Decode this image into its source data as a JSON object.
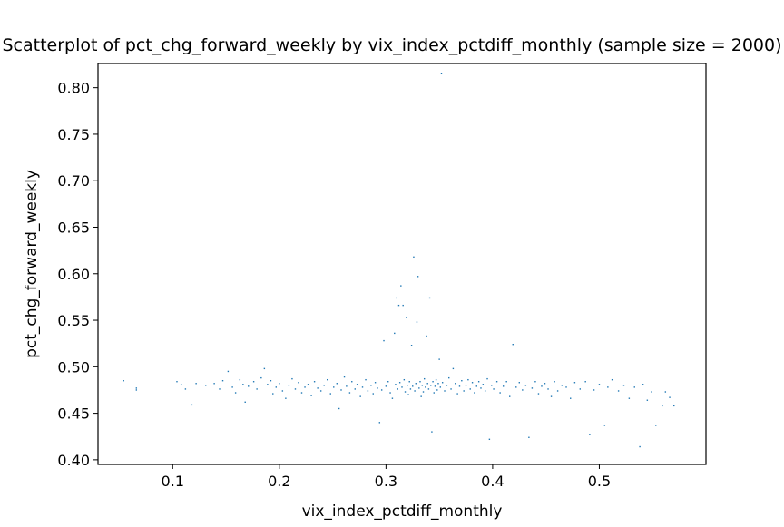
{
  "chart_data": {
    "type": "scatter",
    "title": "Scatterplot of pct_chg_forward_weekly by vix_index_pctdiff_monthly (sample size = 2000)",
    "xlabel": "vix_index_pctdiff_monthly",
    "ylabel": "pct_chg_forward_weekly",
    "xlim": [
      0.03,
      0.6
    ],
    "ylim": [
      0.395,
      0.826
    ],
    "xticks": [
      0.1,
      0.2,
      0.3,
      0.4,
      0.5
    ],
    "xtick_labels": [
      "0.1",
      "0.2",
      "0.3",
      "0.4",
      "0.5"
    ],
    "yticks": [
      0.4,
      0.45,
      0.5,
      0.55,
      0.6,
      0.65,
      0.7,
      0.75,
      0.8
    ],
    "ytick_labels": [
      "0.40",
      "0.45",
      "0.50",
      "0.55",
      "0.60",
      "0.65",
      "0.70",
      "0.75",
      "0.80"
    ],
    "grid": false,
    "marker_color": "#1f77b4",
    "points": [
      [
        0.054,
        0.485
      ],
      [
        0.066,
        0.477
      ],
      [
        0.066,
        0.475
      ],
      [
        0.104,
        0.484
      ],
      [
        0.108,
        0.481
      ],
      [
        0.112,
        0.476
      ],
      [
        0.118,
        0.459
      ],
      [
        0.122,
        0.482
      ],
      [
        0.131,
        0.48
      ],
      [
        0.139,
        0.482
      ],
      [
        0.144,
        0.476
      ],
      [
        0.147,
        0.485
      ],
      [
        0.152,
        0.495
      ],
      [
        0.156,
        0.478
      ],
      [
        0.159,
        0.472
      ],
      [
        0.163,
        0.486
      ],
      [
        0.166,
        0.481
      ],
      [
        0.168,
        0.462
      ],
      [
        0.171,
        0.479
      ],
      [
        0.176,
        0.484
      ],
      [
        0.179,
        0.476
      ],
      [
        0.183,
        0.488
      ],
      [
        0.186,
        0.498
      ],
      [
        0.189,
        0.481
      ],
      [
        0.192,
        0.485
      ],
      [
        0.194,
        0.471
      ],
      [
        0.197,
        0.478
      ],
      [
        0.2,
        0.482
      ],
      [
        0.203,
        0.474
      ],
      [
        0.206,
        0.466
      ],
      [
        0.209,
        0.48
      ],
      [
        0.212,
        0.487
      ],
      [
        0.215,
        0.476
      ],
      [
        0.218,
        0.483
      ],
      [
        0.221,
        0.472
      ],
      [
        0.224,
        0.478
      ],
      [
        0.227,
        0.481
      ],
      [
        0.23,
        0.469
      ],
      [
        0.233,
        0.484
      ],
      [
        0.236,
        0.477
      ],
      [
        0.239,
        0.474
      ],
      [
        0.242,
        0.48
      ],
      [
        0.245,
        0.486
      ],
      [
        0.248,
        0.471
      ],
      [
        0.251,
        0.478
      ],
      [
        0.254,
        0.482
      ],
      [
        0.256,
        0.455
      ],
      [
        0.258,
        0.475
      ],
      [
        0.261,
        0.489
      ],
      [
        0.263,
        0.479
      ],
      [
        0.266,
        0.472
      ],
      [
        0.268,
        0.484
      ],
      [
        0.271,
        0.476
      ],
      [
        0.273,
        0.481
      ],
      [
        0.276,
        0.468
      ],
      [
        0.278,
        0.478
      ],
      [
        0.281,
        0.486
      ],
      [
        0.283,
        0.474
      ],
      [
        0.286,
        0.48
      ],
      [
        0.288,
        0.471
      ],
      [
        0.29,
        0.483
      ],
      [
        0.292,
        0.477
      ],
      [
        0.294,
        0.44
      ],
      [
        0.296,
        0.475
      ],
      [
        0.298,
        0.528
      ],
      [
        0.3,
        0.479
      ],
      [
        0.302,
        0.484
      ],
      [
        0.304,
        0.472
      ],
      [
        0.306,
        0.466
      ],
      [
        0.308,
        0.536
      ],
      [
        0.309,
        0.481
      ],
      [
        0.31,
        0.574
      ],
      [
        0.311,
        0.476
      ],
      [
        0.312,
        0.566
      ],
      [
        0.313,
        0.483
      ],
      [
        0.314,
        0.587
      ],
      [
        0.315,
        0.478
      ],
      [
        0.316,
        0.566
      ],
      [
        0.317,
        0.486
      ],
      [
        0.318,
        0.473
      ],
      [
        0.319,
        0.553
      ],
      [
        0.32,
        0.48
      ],
      [
        0.321,
        0.47
      ],
      [
        0.322,
        0.484
      ],
      [
        0.323,
        0.476
      ],
      [
        0.324,
        0.523
      ],
      [
        0.325,
        0.479
      ],
      [
        0.326,
        0.618
      ],
      [
        0.327,
        0.474
      ],
      [
        0.328,
        0.482
      ],
      [
        0.329,
        0.548
      ],
      [
        0.33,
        0.597
      ],
      [
        0.331,
        0.477
      ],
      [
        0.332,
        0.484
      ],
      [
        0.333,
        0.468
      ],
      [
        0.334,
        0.48
      ],
      [
        0.335,
        0.473
      ],
      [
        0.336,
        0.487
      ],
      [
        0.337,
        0.478
      ],
      [
        0.338,
        0.533
      ],
      [
        0.339,
        0.482
      ],
      [
        0.34,
        0.476
      ],
      [
        0.341,
        0.574
      ],
      [
        0.342,
        0.48
      ],
      [
        0.343,
        0.43
      ],
      [
        0.344,
        0.484
      ],
      [
        0.345,
        0.472
      ],
      [
        0.346,
        0.479
      ],
      [
        0.347,
        0.486
      ],
      [
        0.348,
        0.475
      ],
      [
        0.349,
        0.482
      ],
      [
        0.35,
        0.508
      ],
      [
        0.351,
        0.478
      ],
      [
        0.352,
        0.815
      ],
      [
        0.353,
        0.483
      ],
      [
        0.355,
        0.474
      ],
      [
        0.357,
        0.48
      ],
      [
        0.359,
        0.488
      ],
      [
        0.361,
        0.476
      ],
      [
        0.363,
        0.498
      ],
      [
        0.365,
        0.482
      ],
      [
        0.367,
        0.471
      ],
      [
        0.369,
        0.479
      ],
      [
        0.371,
        0.485
      ],
      [
        0.373,
        0.474
      ],
      [
        0.375,
        0.48
      ],
      [
        0.377,
        0.486
      ],
      [
        0.379,
        0.476
      ],
      [
        0.381,
        0.483
      ],
      [
        0.383,
        0.472
      ],
      [
        0.385,
        0.479
      ],
      [
        0.387,
        0.484
      ],
      [
        0.389,
        0.477
      ],
      [
        0.391,
        0.481
      ],
      [
        0.393,
        0.474
      ],
      [
        0.395,
        0.487
      ],
      [
        0.397,
        0.422
      ],
      [
        0.399,
        0.48
      ],
      [
        0.401,
        0.476
      ],
      [
        0.404,
        0.484
      ],
      [
        0.407,
        0.472
      ],
      [
        0.41,
        0.479
      ],
      [
        0.413,
        0.484
      ],
      [
        0.416,
        0.468
      ],
      [
        0.419,
        0.524
      ],
      [
        0.422,
        0.478
      ],
      [
        0.425,
        0.483
      ],
      [
        0.428,
        0.475
      ],
      [
        0.431,
        0.48
      ],
      [
        0.434,
        0.424
      ],
      [
        0.437,
        0.477
      ],
      [
        0.44,
        0.484
      ],
      [
        0.443,
        0.471
      ],
      [
        0.446,
        0.479
      ],
      [
        0.449,
        0.482
      ],
      [
        0.452,
        0.476
      ],
      [
        0.455,
        0.468
      ],
      [
        0.458,
        0.484
      ],
      [
        0.461,
        0.474
      ],
      [
        0.465,
        0.48
      ],
      [
        0.469,
        0.478
      ],
      [
        0.473,
        0.466
      ],
      [
        0.477,
        0.483
      ],
      [
        0.482,
        0.476
      ],
      [
        0.487,
        0.484
      ],
      [
        0.491,
        0.427
      ],
      [
        0.495,
        0.475
      ],
      [
        0.5,
        0.481
      ],
      [
        0.505,
        0.437
      ],
      [
        0.508,
        0.478
      ],
      [
        0.512,
        0.486
      ],
      [
        0.518,
        0.474
      ],
      [
        0.523,
        0.48
      ],
      [
        0.528,
        0.466
      ],
      [
        0.533,
        0.478
      ],
      [
        0.538,
        0.414
      ],
      [
        0.541,
        0.481
      ],
      [
        0.545,
        0.464
      ],
      [
        0.549,
        0.473
      ],
      [
        0.553,
        0.437
      ],
      [
        0.559,
        0.458
      ],
      [
        0.562,
        0.473
      ],
      [
        0.566,
        0.467
      ],
      [
        0.57,
        0.458
      ]
    ]
  }
}
